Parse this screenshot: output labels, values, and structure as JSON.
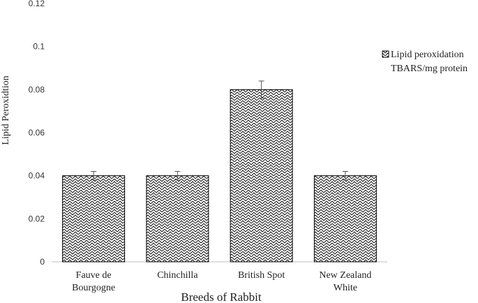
{
  "chart_data": {
    "type": "bar",
    "categories": [
      [
        "Fauve de",
        "Bourgogne"
      ],
      [
        "Chinchilla"
      ],
      [
        "British Spot"
      ],
      [
        "New Zealand",
        "White"
      ]
    ],
    "series": [
      {
        "name": [
          "Lipid peroxidation",
          "TBARS/mg protein"
        ],
        "values": [
          0.04,
          0.04,
          0.08,
          0.04
        ],
        "errors": [
          0.002,
          0.002,
          0.004,
          0.002
        ]
      }
    ],
    "xlabel": "Breeds of Rabbit",
    "ylabel": "Lipid Peroxidtion",
    "ylim": [
      0,
      0.12
    ],
    "yticks": [
      "0",
      "0.02",
      "0.04",
      "0.06",
      "0.08",
      "0.1",
      "0.12"
    ],
    "grid": false,
    "legend_position": "right",
    "colors": {
      "bar_fill_pattern": "herringbone-hatch",
      "bar_edge": "#000000",
      "axis": "#bfbfbf"
    }
  }
}
